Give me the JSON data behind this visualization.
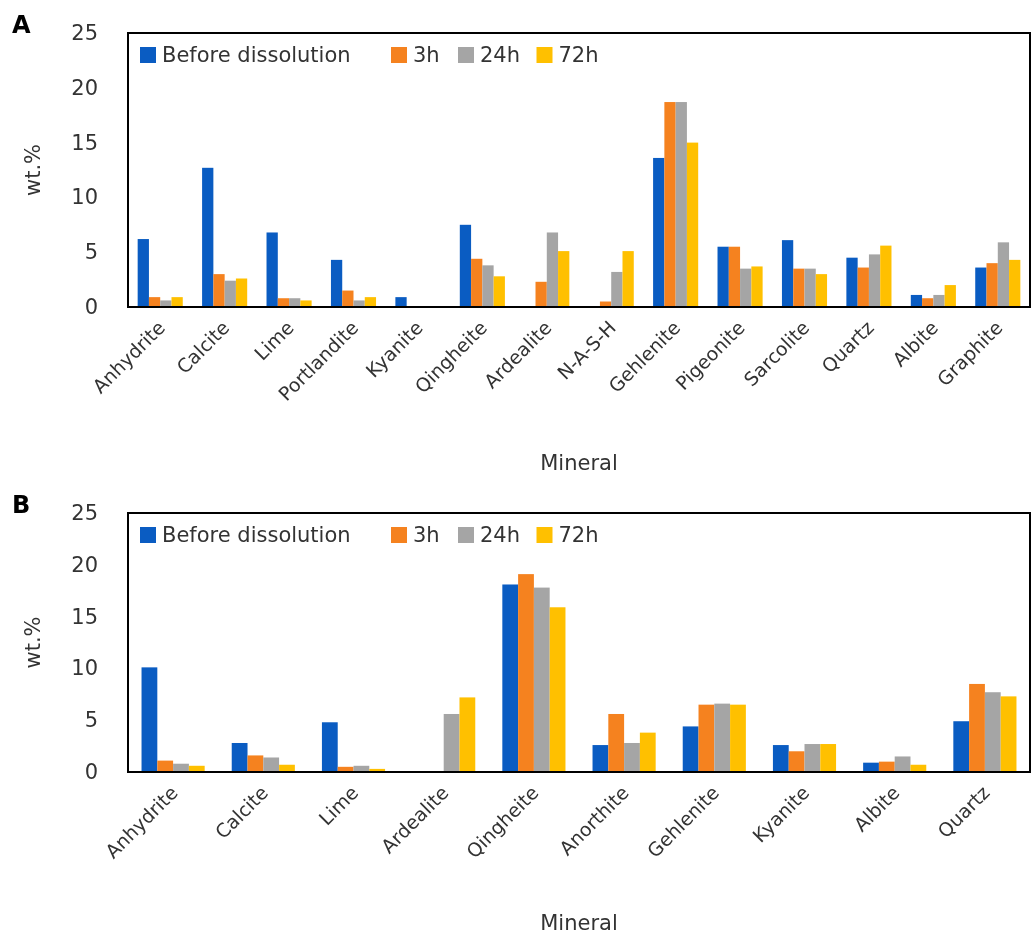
{
  "chart_data": [
    {
      "type": "bar",
      "title": "A",
      "xlabel": "Mineral",
      "ylabel": "wt.%",
      "categories": [
        "Anhydrite",
        "Calcite",
        "Lime",
        "Portlandite",
        "Kyanite",
        "Qingheite",
        "Ardealite",
        "N-A-S-H",
        "Gehlenite",
        "Pigeonite",
        "Sarcolite",
        "Quartz",
        "Albite",
        "Graphite"
      ],
      "ylim": [
        0,
        25
      ],
      "yticks": [
        0,
        5,
        10,
        15,
        20,
        25
      ],
      "legend": "top left",
      "grid": false,
      "series": [
        {
          "name": "Before dissolution",
          "color": "#0a5cc2",
          "values": [
            6.2,
            12.7,
            6.8,
            4.3,
            0.9,
            7.5,
            null,
            null,
            13.6,
            5.5,
            6.1,
            4.5,
            1.1,
            3.6
          ]
        },
        {
          "name": "3h",
          "color": "#f5821f",
          "values": [
            0.9,
            3.0,
            0.8,
            1.5,
            null,
            4.4,
            2.3,
            0.5,
            18.7,
            5.5,
            3.5,
            3.6,
            0.8,
            4.0
          ]
        },
        {
          "name": "24h",
          "color": "#a5a5a5",
          "values": [
            0.6,
            2.4,
            0.8,
            0.6,
            null,
            3.8,
            6.8,
            3.2,
            18.7,
            3.5,
            3.5,
            4.8,
            1.1,
            5.9
          ]
        },
        {
          "name": "72h",
          "color": "#ffc000",
          "values": [
            0.9,
            2.6,
            0.6,
            0.9,
            null,
            2.8,
            5.1,
            5.1,
            15.0,
            3.7,
            3.0,
            5.6,
            2.0,
            4.3
          ]
        }
      ]
    },
    {
      "type": "bar",
      "title": "B",
      "xlabel": "Mineral",
      "ylabel": "wt.%",
      "categories": [
        "Anhydrite",
        "Calcite",
        "Lime",
        "Ardealite",
        "Qingheite",
        "Anorthite",
        "Gehlenite",
        "Kyanite",
        "Albite",
        "Quartz"
      ],
      "ylim": [
        0,
        25
      ],
      "yticks": [
        0,
        5,
        10,
        15,
        20,
        25
      ],
      "legend": "top left",
      "grid": false,
      "series": [
        {
          "name": "Before dissolution",
          "color": "#0a5cc2",
          "values": [
            10.1,
            2.8,
            4.8,
            null,
            18.1,
            2.6,
            4.4,
            2.6,
            0.9,
            4.9
          ]
        },
        {
          "name": "3h",
          "color": "#f5821f",
          "values": [
            1.1,
            1.6,
            0.5,
            null,
            19.1,
            5.6,
            6.5,
            2.0,
            1.0,
            8.5
          ]
        },
        {
          "name": "24h",
          "color": "#a5a5a5",
          "values": [
            0.8,
            1.4,
            0.6,
            5.6,
            17.8,
            2.8,
            6.6,
            2.7,
            1.5,
            7.7
          ]
        },
        {
          "name": "72h",
          "color": "#ffc000",
          "values": [
            0.6,
            0.7,
            0.3,
            7.2,
            15.9,
            3.8,
            6.5,
            2.7,
            0.7,
            7.3
          ]
        }
      ]
    }
  ]
}
